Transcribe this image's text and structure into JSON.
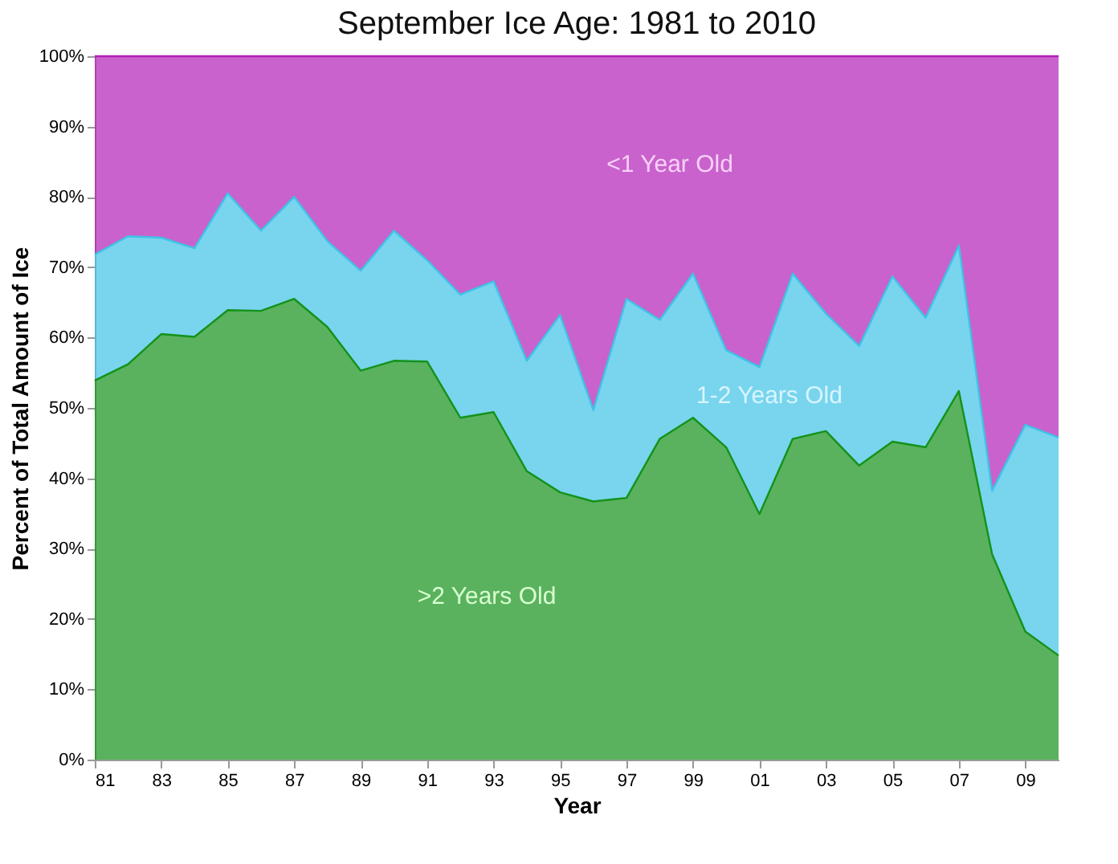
{
  "chart_data": {
    "type": "area",
    "stacked": true,
    "title": "September Ice Age: 1981 to 2010",
    "xlabel": "Year",
    "ylabel": "Percent of Total Amount of Ice",
    "x": [
      1981,
      1982,
      1983,
      1984,
      1985,
      1986,
      1987,
      1988,
      1989,
      1990,
      1991,
      1992,
      1993,
      1994,
      1995,
      1996,
      1997,
      1998,
      1999,
      2000,
      2001,
      2002,
      2003,
      2004,
      2005,
      2006,
      2007,
      2008,
      2009,
      2010
    ],
    "series": [
      {
        "name": ">2 Years Old",
        "color": "#14921a",
        "values": [
          53.9,
          56.2,
          60.5,
          60.1,
          63.9,
          63.8,
          65.5,
          61.5,
          55.3,
          56.7,
          56.6,
          48.6,
          49.4,
          41.0,
          38.0,
          36.7,
          37.2,
          45.6,
          48.6,
          44.4,
          34.9,
          45.6,
          46.7,
          41.8,
          45.2,
          44.4,
          52.4,
          29.2,
          18.2,
          14.8
        ]
      },
      {
        "name": "1-2 Years Old",
        "color": "#3ec3e6",
        "values": [
          17.9,
          18.2,
          13.7,
          12.6,
          16.6,
          11.4,
          14.5,
          12.2,
          14.2,
          18.5,
          14.4,
          17.5,
          18.6,
          15.7,
          25.2,
          13.0,
          28.3,
          16.9,
          20.5,
          13.8,
          20.9,
          23.5,
          16.7,
          17.0,
          23.5,
          18.4,
          20.7,
          9.0,
          29.4,
          31.0
        ]
      },
      {
        "name": "<1 Year Old",
        "color": "#b21fb8",
        "values": [
          28.2,
          25.6,
          25.8,
          27.3,
          19.5,
          24.8,
          20.0,
          26.3,
          30.5,
          24.8,
          29.0,
          33.9,
          32.0,
          43.3,
          36.8,
          50.3,
          34.5,
          37.5,
          30.9,
          41.8,
          44.2,
          30.9,
          36.6,
          41.2,
          31.3,
          37.2,
          26.9,
          61.8,
          52.4,
          54.2
        ]
      }
    ],
    "xlim": [
      1981,
      2010
    ],
    "xticks": [
      {
        "value": 1981,
        "label": "81"
      },
      {
        "value": 1983,
        "label": "83"
      },
      {
        "value": 1985,
        "label": "85"
      },
      {
        "value": 1987,
        "label": "87"
      },
      {
        "value": 1989,
        "label": "89"
      },
      {
        "value": 1991,
        "label": "91"
      },
      {
        "value": 1993,
        "label": "93"
      },
      {
        "value": 1995,
        "label": "95"
      },
      {
        "value": 1997,
        "label": "97"
      },
      {
        "value": 1999,
        "label": "99"
      },
      {
        "value": 2001,
        "label": "01"
      },
      {
        "value": 2003,
        "label": "03"
      },
      {
        "value": 2005,
        "label": "05"
      },
      {
        "value": 2007,
        "label": "07"
      },
      {
        "value": 2009,
        "label": "09"
      }
    ],
    "ylim": [
      0,
      100
    ],
    "yticks": [
      {
        "value": 0,
        "label": "0%"
      },
      {
        "value": 10,
        "label": "10%"
      },
      {
        "value": 20,
        "label": "20%"
      },
      {
        "value": 30,
        "label": "30%"
      },
      {
        "value": 40,
        "label": "40%"
      },
      {
        "value": 50,
        "label": "50%"
      },
      {
        "value": 60,
        "label": "60%"
      },
      {
        "value": 70,
        "label": "70%"
      },
      {
        "value": 80,
        "label": "80%"
      },
      {
        "value": 90,
        "label": "90%"
      },
      {
        "value": 100,
        "label": "100%"
      }
    ],
    "grid": false,
    "legend": false
  }
}
